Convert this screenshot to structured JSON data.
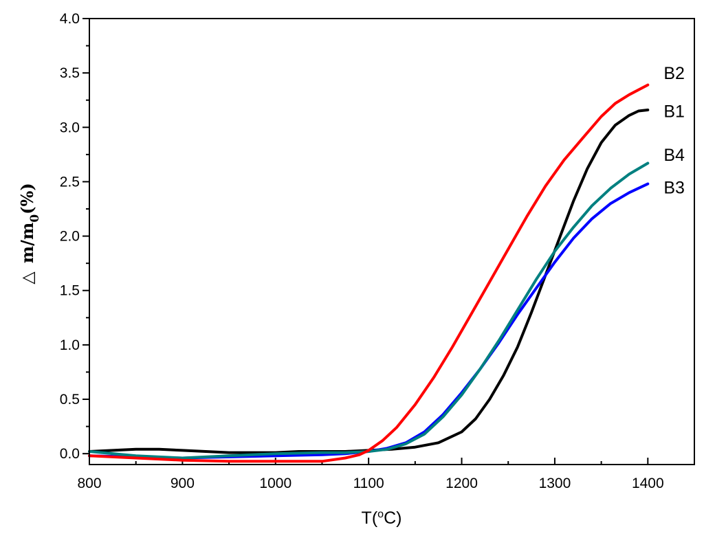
{
  "chart_data": {
    "type": "line",
    "title": "",
    "xlabel": "T(°C)",
    "xlabel_parts": {
      "prefix": "T(",
      "degree": "o",
      "suffix": "C)"
    },
    "ylabel": "△ m/m0(%)",
    "ylabel_parts": {
      "delta": "△",
      "main": "m/m",
      "subscript": "0",
      "suffix": "(%)"
    },
    "xlim": [
      800,
      1450
    ],
    "ylim": [
      -0.1,
      4.0
    ],
    "x_ticks": [
      800,
      900,
      1000,
      1100,
      1200,
      1300,
      1400
    ],
    "x_tick_labels": [
      "800",
      "900",
      "1000",
      "1100",
      "1200",
      "1300",
      "1400"
    ],
    "y_ticks": [
      0.0,
      0.5,
      1.0,
      1.5,
      2.0,
      2.5,
      3.0,
      3.5,
      4.0
    ],
    "y_tick_labels": [
      "0.0",
      "0.5",
      "1.0",
      "1.5",
      "2.0",
      "2.5",
      "3.0",
      "3.5",
      "4.0"
    ],
    "grid": false,
    "legend": "none",
    "series": [
      {
        "name": "B1",
        "color": "#000000",
        "points": [
          [
            800,
            0.02
          ],
          [
            825,
            0.03
          ],
          [
            850,
            0.04
          ],
          [
            875,
            0.04
          ],
          [
            900,
            0.03
          ],
          [
            925,
            0.02
          ],
          [
            950,
            0.01
          ],
          [
            975,
            0.01
          ],
          [
            1000,
            0.01
          ],
          [
            1025,
            0.02
          ],
          [
            1050,
            0.02
          ],
          [
            1075,
            0.02
          ],
          [
            1100,
            0.03
          ],
          [
            1125,
            0.04
          ],
          [
            1150,
            0.06
          ],
          [
            1175,
            0.1
          ],
          [
            1200,
            0.2
          ],
          [
            1215,
            0.32
          ],
          [
            1230,
            0.5
          ],
          [
            1245,
            0.72
          ],
          [
            1260,
            0.98
          ],
          [
            1275,
            1.3
          ],
          [
            1290,
            1.64
          ],
          [
            1305,
            1.98
          ],
          [
            1320,
            2.32
          ],
          [
            1335,
            2.62
          ],
          [
            1350,
            2.86
          ],
          [
            1365,
            3.02
          ],
          [
            1380,
            3.11
          ],
          [
            1390,
            3.15
          ],
          [
            1400,
            3.16
          ]
        ]
      },
      {
        "name": "B2",
        "color": "#ff0000",
        "points": [
          [
            800,
            -0.02
          ],
          [
            850,
            -0.04
          ],
          [
            900,
            -0.06
          ],
          [
            950,
            -0.07
          ],
          [
            1000,
            -0.07
          ],
          [
            1050,
            -0.07
          ],
          [
            1075,
            -0.04
          ],
          [
            1090,
            -0.01
          ],
          [
            1100,
            0.03
          ],
          [
            1115,
            0.12
          ],
          [
            1130,
            0.24
          ],
          [
            1150,
            0.45
          ],
          [
            1170,
            0.7
          ],
          [
            1190,
            0.98
          ],
          [
            1210,
            1.28
          ],
          [
            1230,
            1.58
          ],
          [
            1250,
            1.88
          ],
          [
            1270,
            2.18
          ],
          [
            1290,
            2.46
          ],
          [
            1310,
            2.7
          ],
          [
            1330,
            2.9
          ],
          [
            1350,
            3.1
          ],
          [
            1365,
            3.22
          ],
          [
            1380,
            3.3
          ],
          [
            1400,
            3.39
          ]
        ]
      },
      {
        "name": "B3",
        "color": "#0000ff",
        "points": [
          [
            800,
            -0.02
          ],
          [
            850,
            -0.03
          ],
          [
            900,
            -0.04
          ],
          [
            950,
            -0.03
          ],
          [
            1000,
            -0.02
          ],
          [
            1050,
            -0.01
          ],
          [
            1075,
            0.0
          ],
          [
            1100,
            0.02
          ],
          [
            1120,
            0.05
          ],
          [
            1140,
            0.1
          ],
          [
            1160,
            0.2
          ],
          [
            1180,
            0.36
          ],
          [
            1200,
            0.56
          ],
          [
            1220,
            0.78
          ],
          [
            1240,
            1.02
          ],
          [
            1260,
            1.28
          ],
          [
            1280,
            1.52
          ],
          [
            1300,
            1.76
          ],
          [
            1320,
            1.98
          ],
          [
            1340,
            2.16
          ],
          [
            1360,
            2.3
          ],
          [
            1380,
            2.4
          ],
          [
            1400,
            2.48
          ]
        ]
      },
      {
        "name": "B4",
        "color": "#008080",
        "points": [
          [
            800,
            0.02
          ],
          [
            850,
            -0.02
          ],
          [
            900,
            -0.04
          ],
          [
            950,
            -0.02
          ],
          [
            1000,
            0.0
          ],
          [
            1050,
            0.01
          ],
          [
            1075,
            0.01
          ],
          [
            1100,
            0.02
          ],
          [
            1120,
            0.04
          ],
          [
            1140,
            0.09
          ],
          [
            1160,
            0.18
          ],
          [
            1180,
            0.34
          ],
          [
            1200,
            0.54
          ],
          [
            1220,
            0.78
          ],
          [
            1240,
            1.04
          ],
          [
            1260,
            1.32
          ],
          [
            1280,
            1.6
          ],
          [
            1300,
            1.86
          ],
          [
            1320,
            2.08
          ],
          [
            1340,
            2.28
          ],
          [
            1360,
            2.44
          ],
          [
            1380,
            2.57
          ],
          [
            1400,
            2.67
          ]
        ]
      }
    ],
    "annotations": [
      {
        "text": "B2",
        "x": 1417,
        "y": 3.5
      },
      {
        "text": "B1",
        "x": 1417,
        "y": 3.15
      },
      {
        "text": "B4",
        "x": 1417,
        "y": 2.75
      },
      {
        "text": "B3",
        "x": 1417,
        "y": 2.45
      }
    ]
  }
}
